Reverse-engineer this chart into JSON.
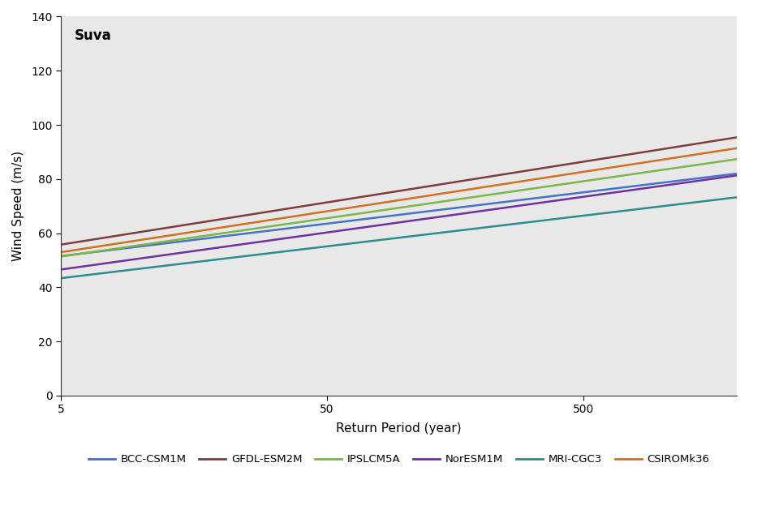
{
  "title": "Suva",
  "xlabel": "Return Period (year)",
  "ylabel": "Wind Speed (m/s)",
  "background_color": "#e8e8e8",
  "ylim": [
    0,
    140
  ],
  "yticks": [
    0,
    20,
    40,
    60,
    80,
    100,
    120,
    140
  ],
  "xtick_periods": [
    5,
    50,
    500
  ],
  "T_min": 5,
  "T_max": 2000,
  "models": [
    {
      "name": "BCC-CSM1M",
      "color": "#4472C4",
      "u": 44.0,
      "alpha": 5.0
    },
    {
      "name": "GFDL-ESM2M",
      "color": "#7F3C3C",
      "u": 46.0,
      "alpha": 6.5
    },
    {
      "name": "IPSLCM5A",
      "color": "#7AB648",
      "u": 42.5,
      "alpha": 5.9
    },
    {
      "name": "NorESM1M",
      "color": "#7030A0",
      "u": 38.0,
      "alpha": 5.7
    },
    {
      "name": "MRI-CGC3",
      "color": "#2E8B8B",
      "u": 36.0,
      "alpha": 4.9
    },
    {
      "name": "CSIROMk36",
      "color": "#D07020",
      "u": 43.5,
      "alpha": 6.3
    }
  ]
}
